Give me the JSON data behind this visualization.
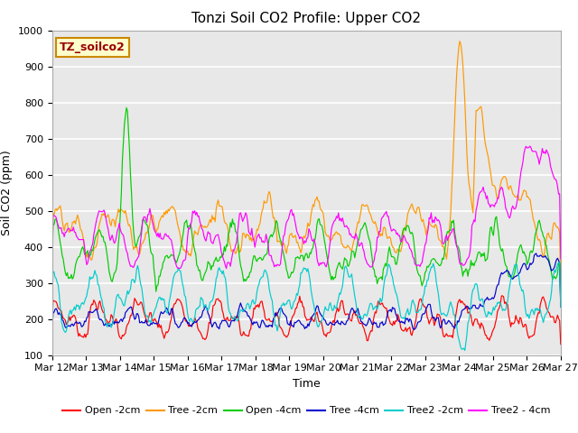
{
  "title": "Tonzi Soil CO2 Profile: Upper CO2",
  "ylabel": "Soil CO2 (ppm)",
  "xlabel": "Time",
  "watermark": "TZ_soilco2",
  "ylim": [
    100,
    1000
  ],
  "x_tick_labels": [
    "Mar 12",
    "Mar 13",
    "Mar 14",
    "Mar 15",
    "Mar 16",
    "Mar 17",
    "Mar 18",
    "Mar 19",
    "Mar 20",
    "Mar 21",
    "Mar 22",
    "Mar 23",
    "Mar 24",
    "Mar 25",
    "Mar 26",
    "Mar 27"
  ],
  "series_colors": [
    "#ff0000",
    "#ff9900",
    "#00cc00",
    "#0000cc",
    "#00cccc",
    "#ff00ff"
  ],
  "series_labels": [
    "Open -2cm",
    "Tree -2cm",
    "Open -4cm",
    "Tree -4cm",
    "Tree2 -2cm",
    "Tree2 - 4cm"
  ],
  "background_color": "#e8e8e8",
  "grid_color": "#ffffff",
  "title_fontsize": 11,
  "axis_label_fontsize": 9,
  "tick_fontsize": 8,
  "legend_fontsize": 8,
  "n_points": 500
}
